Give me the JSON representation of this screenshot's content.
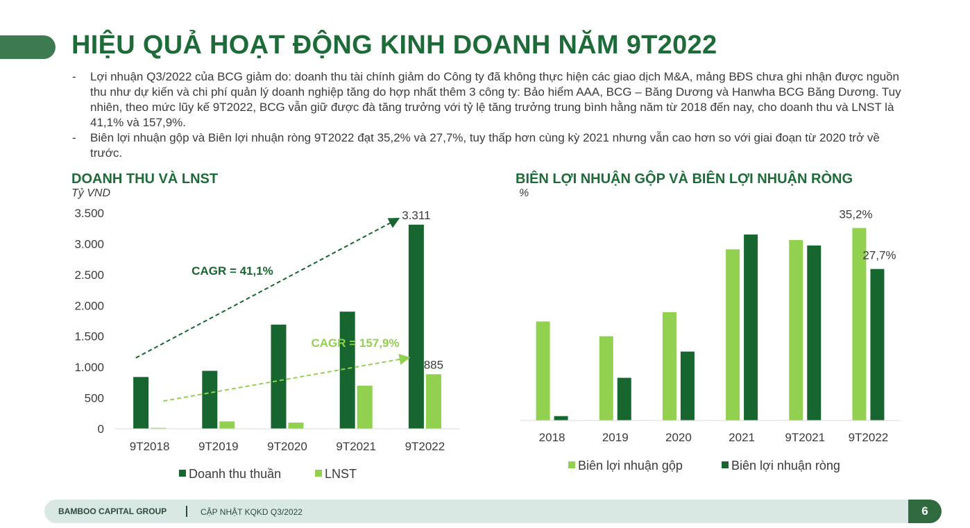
{
  "page": {
    "title": "HIỆU QUẢ HOẠT ĐỘNG KINH DOANH NĂM 9T2022",
    "bullets": [
      "Lợi nhuận Q3/2022 của BCG giảm do: doanh thu tài chính giảm do Công ty đã không thực hiện các giao dịch M&A, mảng BĐS chưa ghi nhận được nguồn thu như dự kiến và chi phí quản lý doanh nghiệp tăng do hợp nhất thêm 3 công ty: Bảo hiểm AAA, BCG – Băng Dương và Hanwha BCG Băng Dương. Tuy nhiên, theo mức lũy kế 9T2022, BCG vẫn giữ được đà tăng trưởng với tỷ lệ tăng trưởng trung bình hằng năm từ 2018 đến nay, cho doanh thu và LNST là 41,1% và 157,9%.",
      "Biên lợi nhuận gộp và Biên lợi nhuận ròng 9T2022 đạt 35,2% và 27,7%, tuy thấp hơn cùng kỳ 2021 nhưng vẫn cao hơn so với giai đoạn từ 2020 trở về trước."
    ],
    "bullet_marker": "-"
  },
  "footer": {
    "company": "BAMBOO CAPITAL GROUP",
    "subtitle": "CẬP NHẬT KQKD Q3/2022",
    "page_number": "6"
  },
  "colors": {
    "dark_green": "#17662f",
    "light_green": "#92d050",
    "title_green": "#1d6b38"
  },
  "chart_data": [
    {
      "type": "bar",
      "title": "DOANH THU VÀ LNST",
      "ylabel": "Tỷ VND",
      "categories": [
        "9T2018",
        "9T2019",
        "9T2020",
        "9T2021",
        "9T2022"
      ],
      "series": [
        {
          "name": "Doanh thu thuần",
          "color": "#17662f",
          "values": [
            840,
            940,
            1690,
            1900,
            3311
          ]
        },
        {
          "name": "LNST",
          "color": "#92d050",
          "values": [
            15,
            120,
            100,
            700,
            885
          ]
        }
      ],
      "data_labels": [
        {
          "series": 0,
          "index": 4,
          "text": "3.311"
        },
        {
          "series": 1,
          "index": 4,
          "text": "885"
        }
      ],
      "ylim": [
        0,
        3500
      ],
      "yticks": [
        0,
        500,
        1000,
        1500,
        2000,
        2500,
        3000,
        3500
      ],
      "ytick_labels": [
        "0",
        "500",
        "1.000",
        "1.500",
        "2.000",
        "2.500",
        "3.000",
        "3.500"
      ],
      "annotations": [
        {
          "text": "CAGR = 41,1%",
          "color": "#17662f",
          "from": [
            -0.2,
            1150
          ],
          "to": [
            3.6,
            3400
          ]
        },
        {
          "text": "CAGR = 157,9%",
          "color": "#92d050",
          "from": [
            0.2,
            450
          ],
          "to": [
            3.75,
            1150
          ]
        }
      ],
      "legend": "bottom",
      "grid": false
    },
    {
      "type": "bar",
      "title": "BIÊN LỢI NHUẬN GỘP VÀ BIÊN LỢI NHUẬN RÒNG",
      "ylabel": "%",
      "categories": [
        "2018",
        "2019",
        "2020",
        "2021",
        "9T2021",
        "9T2022"
      ],
      "series": [
        {
          "name": "Biên lợi nhuận gộp",
          "color": "#92d050",
          "values": [
            18.1,
            15.4,
            19.8,
            31.3,
            33.0,
            35.2
          ]
        },
        {
          "name": "Biên lợi nhuận ròng",
          "color": "#17662f",
          "values": [
            0.8,
            7.8,
            12.6,
            34.0,
            32.0,
            27.7
          ]
        }
      ],
      "data_labels": [
        {
          "series": 0,
          "index": 5,
          "text": "35,2%"
        },
        {
          "series": 1,
          "index": 5,
          "text": "27,7%"
        }
      ],
      "ylim": [
        0,
        42
      ],
      "legend": "bottom",
      "grid": false
    }
  ]
}
